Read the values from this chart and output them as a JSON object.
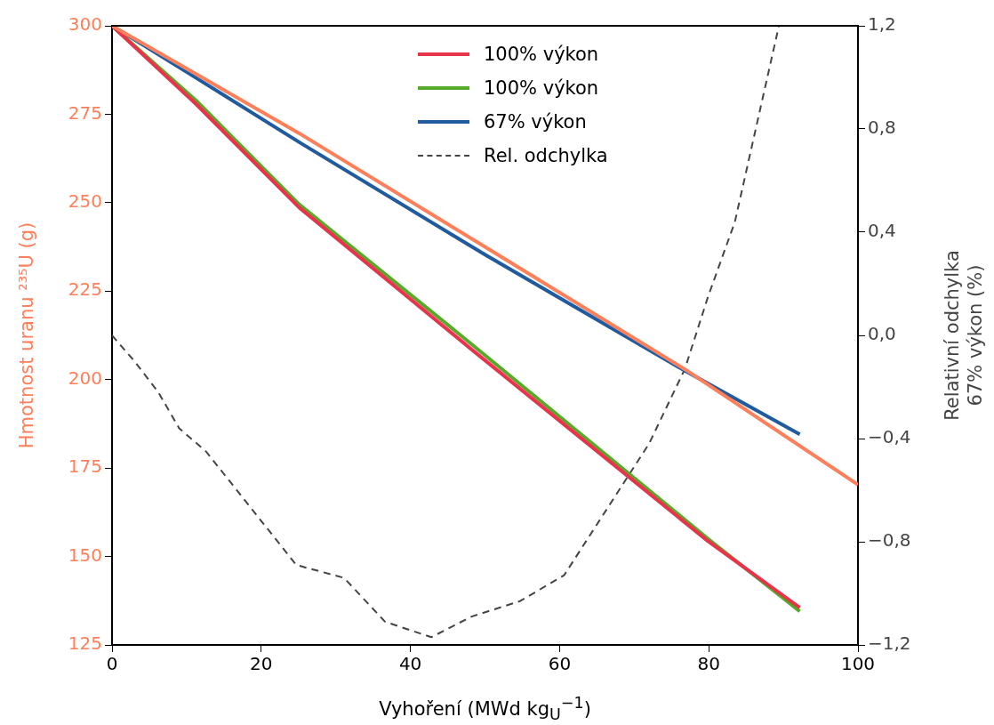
{
  "chart_data": {
    "type": "line",
    "xlabel": "Vyhoření (MWd kg$_{U}$$^{−1}$)",
    "ylabel": "Hmotnost uranu ²³⁵U (g)",
    "y2label": "Relativní odchylka\n67% výkon (%)",
    "xlim": [
      0,
      100
    ],
    "xticks": [
      0,
      20,
      40,
      60,
      80,
      100
    ],
    "ylim": [
      125,
      300
    ],
    "yticks": [
      125,
      150,
      175,
      200,
      225,
      250,
      275,
      300
    ],
    "y2lim": [
      -1.2,
      1.2
    ],
    "y2ticks": [
      {
        "value": -1.2,
        "label": "−1,2"
      },
      {
        "value": -0.8,
        "label": "−0,8"
      },
      {
        "value": -0.4,
        "label": "−0,4"
      },
      {
        "value": 0,
        "label": "0,0"
      },
      {
        "value": 0.4,
        "label": "0,4"
      },
      {
        "value": 0.8,
        "label": "0,8"
      },
      {
        "value": 1.2,
        "label": "1,2"
      }
    ],
    "legend": "top",
    "marker": "none",
    "line_style": "solid",
    "series": [
      {
        "color": "#ff7f5a",
        "x": [
          0,
          25.1,
          50,
          76.8,
          100
        ],
        "values": [
          300,
          269.6,
          237.5,
          202.9,
          170.3
        ]
      },
      {
        "name": "100% výkon",
        "color": "#e8334a",
        "x": [
          0,
          11.2,
          25.1,
          48.5,
          79.9,
          92.2
        ],
        "values": [
          300,
          278,
          248.6,
          208,
          154.3,
          135.5
        ]
      },
      {
        "name": "100% výkon",
        "color": "#55aa2a",
        "x": [
          0,
          11.2,
          25.1,
          48.5,
          79.9,
          92.2
        ],
        "values": [
          300,
          279,
          249.5,
          209.5,
          155,
          134.5
        ]
      },
      {
        "name": "67% výkon",
        "color": "#1f5b9e",
        "x": [
          0,
          10.8,
          25.1,
          50,
          76.8,
          92.2
        ],
        "values": [
          300,
          285.9,
          267.1,
          235.3,
          202.5,
          184.5
        ]
      },
      {
        "name": "Rel. odchylka",
        "color": "#444444",
        "axis": "y2",
        "line_style": "dashed",
        "x": [
          0,
          3,
          6.2,
          9,
          12.6,
          24.7,
          31.1,
          36.6,
          42.8,
          48.2,
          54.7,
          60.6,
          72,
          76.8,
          79.9,
          83.5,
          89.4
        ],
        "values": [
          0,
          -0.1,
          -0.22,
          -0.36,
          -0.45,
          -0.89,
          -0.94,
          -1.11,
          -1.17,
          -1.09,
          -1.03,
          -0.93,
          -0.42,
          -0.13,
          0.15,
          0.44,
          1.2
        ]
      }
    ]
  }
}
